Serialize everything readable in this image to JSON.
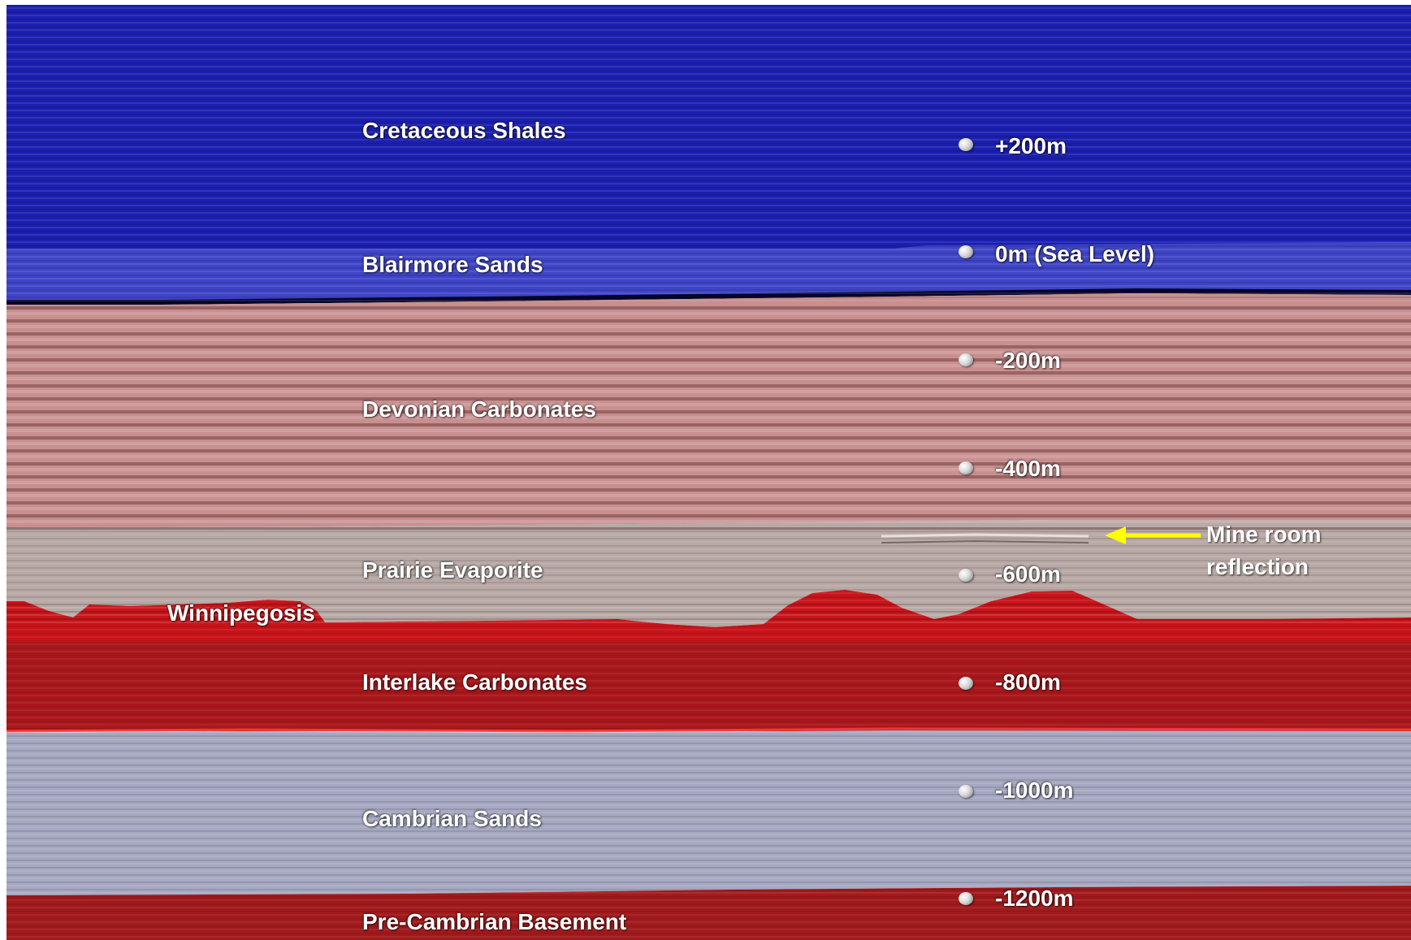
{
  "layers": [
    {
      "name": "Cretaceous Shales",
      "color": "#1b1fb0"
    },
    {
      "name": "Blairmore Sands",
      "color": "#3f45c8"
    },
    {
      "name": "Devonian Carbonates",
      "color": "#c98f8f"
    },
    {
      "name": "Prairie Evaporite",
      "color": "#b8a9a6"
    },
    {
      "name": "Winnipegosis",
      "color": "#c8141a"
    },
    {
      "name": "Interlake Carbonates",
      "color": "#a9171b"
    },
    {
      "name": "Cambrian Sands",
      "color": "#a7a9c2"
    },
    {
      "name": "Pre-Cambrian Basement",
      "color": "#a11a1c"
    }
  ],
  "depths": [
    "+200m",
    "0m (Sea Level)",
    "-200m",
    "-400m",
    "-600m",
    "-800m",
    "-1000m",
    "-1200m"
  ],
  "annotation": {
    "line1": "Mine room",
    "line2": "reflection",
    "arrow_color": "#ffff00",
    "arrow_icon": "arrow-left-icon"
  }
}
